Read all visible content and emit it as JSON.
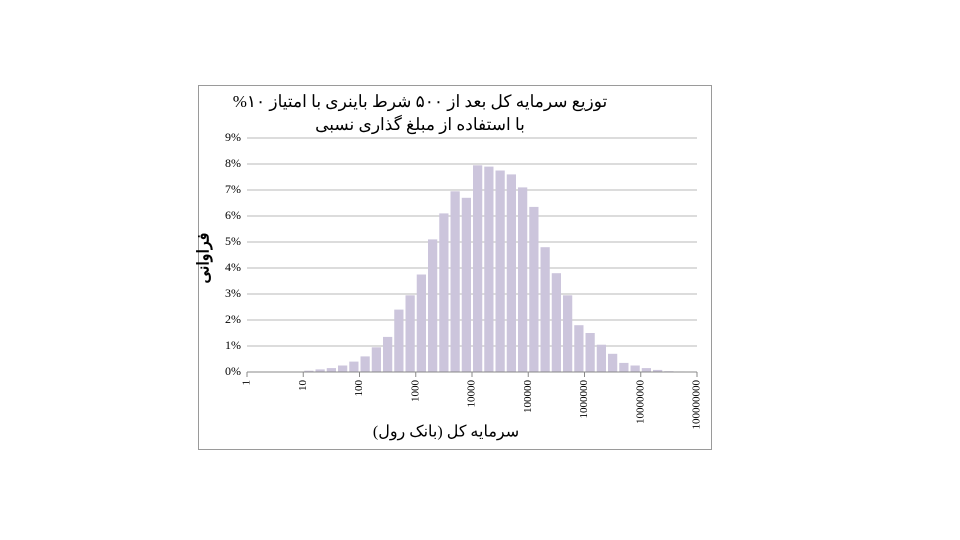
{
  "chart_data": {
    "type": "histogram",
    "title": [
      "توزیع سرمایه کل بعد از ۵۰۰ شرط باینری با امتیاز ۱۰%",
      "با استفاده از مبلغ گذاری نسبی"
    ],
    "x_label": "سرمایه کل (بانک رول)",
    "y_label": "فراوانی",
    "bins": [
      1,
      1.585,
      2.512,
      3.981,
      6.31,
      10,
      15.85,
      25.12,
      39.81,
      63.1,
      100,
      158.5,
      251.2,
      398.1,
      631,
      1000,
      1585,
      2512,
      3981,
      6310,
      10000,
      15850,
      25120,
      39810,
      63100,
      100000,
      158500,
      251200,
      398100,
      631000,
      1000000,
      1585000,
      2512000,
      3981000,
      6310000,
      10000000,
      15850000,
      25120000,
      39810000,
      63100000,
      100000000
    ],
    "values": [
      0,
      0,
      0,
      0,
      0,
      0.05,
      0.1,
      0.15,
      0.25,
      0.4,
      0.6,
      0.95,
      1.35,
      2.4,
      2.95,
      3.75,
      5.1,
      6.1,
      6.95,
      6.7,
      7.95,
      7.9,
      7.75,
      7.6,
      7.1,
      6.35,
      4.8,
      3.8,
      2.95,
      1.8,
      1.5,
      1.05,
      0.7,
      0.35,
      0.25,
      0.15,
      0.08,
      0.03,
      0.02,
      0.01
    ],
    "color": "#ccc5dc",
    "x_scale": "log",
    "xlim": [
      1,
      100000000
    ],
    "xticks": [
      1,
      10,
      100,
      1000,
      10000,
      100000,
      1000000,
      10000000,
      100000000
    ],
    "ylim": [
      0,
      9
    ],
    "yticks": [
      {
        "value": 0,
        "label": "0%"
      },
      {
        "value": 1,
        "label": "1%"
      },
      {
        "value": 2,
        "label": "2%"
      },
      {
        "value": 3,
        "label": "3%"
      },
      {
        "value": 4,
        "label": "4%"
      },
      {
        "value": 5,
        "label": "5%"
      },
      {
        "value": 6,
        "label": "6%"
      },
      {
        "value": 7,
        "label": "7%"
      },
      {
        "value": 8,
        "label": "8%"
      },
      {
        "value": 9,
        "label": "9%"
      }
    ],
    "grid": true
  }
}
